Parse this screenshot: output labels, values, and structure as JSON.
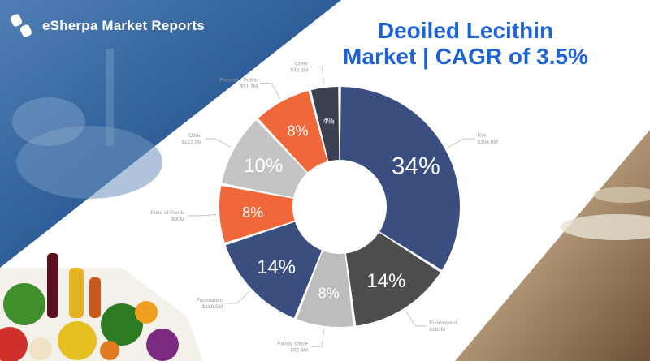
{
  "brand": {
    "name": "eSherpa Market Reports",
    "logo_icon": "esherpa-s-logo-icon"
  },
  "headline": {
    "line1": "Deoiled Lecithin",
    "line2": "Market | CAGR of 3.5%",
    "color": "#1c63d9"
  },
  "chart_data": {
    "type": "donut",
    "title": "",
    "slices": [
      {
        "name": "RIA",
        "sub": "$394.8M",
        "value": 34,
        "label": "34%",
        "color": "#3a4f80"
      },
      {
        "name": "Endowment",
        "sub": "$161M",
        "value": 14,
        "label": "14%",
        "color": "#4d4d4d"
      },
      {
        "name": "Family Office",
        "sub": "$92.4M",
        "value": 8,
        "label": "8%",
        "color": "#bdbdbd"
      },
      {
        "name": "Foundation",
        "sub": "$169.5M",
        "value": 14,
        "label": "14%",
        "color": "#3a4f80"
      },
      {
        "name": "Fund of Funds",
        "sub": "$90M",
        "value": 8,
        "label": "8%",
        "color": "#f0683a"
      },
      {
        "name": "Other",
        "sub": "$122.9M",
        "value": 10,
        "label": "10%",
        "color": "#c4c4c4"
      },
      {
        "name": "Pension - Public",
        "sub": "$91.2M",
        "value": 8,
        "label": "8%",
        "color": "#f0683a"
      },
      {
        "name": "Other",
        "sub": "$45.5M",
        "value": 4,
        "label": "4%",
        "color": "#3b4152"
      }
    ]
  }
}
